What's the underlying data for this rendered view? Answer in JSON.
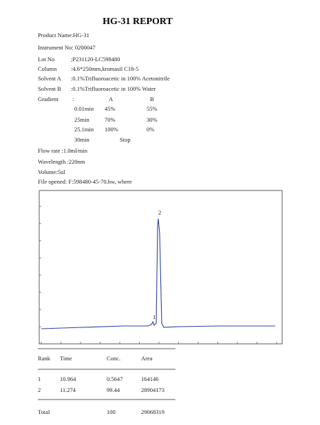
{
  "header": {
    "title": "HG-31 REPORT"
  },
  "info": [
    {
      "text": "Product Name:HG-31"
    },
    {
      "text": "Instrument No: 0200047"
    },
    {
      "label": "Lot  No",
      "value": ";P231120-LC598480"
    },
    {
      "label": "Column",
      "value": ":4.6*250mm,kromasil  C18-5"
    },
    {
      "label": "Solvent A",
      "value": ":0.1%Trifluoroacetic  in 100% Acetonitrile"
    },
    {
      "label": "Solvent B",
      "value": ":0.1%Trifluoroacetic  in 100% Water"
    }
  ],
  "gradient": {
    "label": "Gradient",
    "colon": ":",
    "columns": [
      "A",
      "B"
    ],
    "rows": [
      [
        "0.01min",
        "45%",
        "55%"
      ],
      [
        "25min",
        "70%",
        "30%"
      ],
      [
        "25.1min",
        "100%",
        "0%"
      ]
    ],
    "stop": [
      "30min",
      "Stop"
    ]
  },
  "settings": [
    {
      "text": "Flow rate  :1.0ml/min"
    },
    {
      "text": "Wavelength :220nm"
    },
    {
      "text": "Volume:5ul"
    },
    {
      "text": "File opened: F:598480-45-70.hw, where"
    }
  ],
  "peaks": [
    "1",
    "2"
  ],
  "table": {
    "columns": [
      "Rank",
      "Time",
      "Conc.",
      "Area"
    ],
    "rows": [
      [
        "1",
        "10.964",
        "0.5647",
        "164146"
      ],
      [
        "2",
        "11.274",
        "99.44",
        "28904173"
      ]
    ],
    "total": [
      "Total",
      "100",
      "29068319"
    ]
  }
}
